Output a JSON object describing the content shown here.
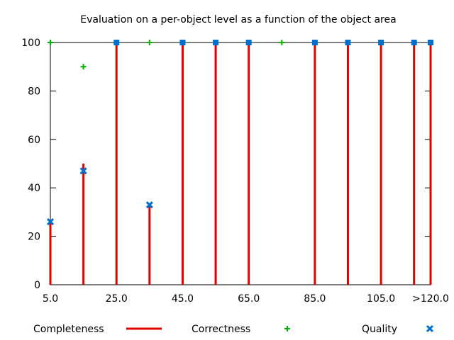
{
  "chart_data": {
    "type": "bar",
    "title": "Evaluation on a per-object level as a function of the object area",
    "xlabel": "",
    "ylabel": "",
    "ylim": [
      0,
      100
    ],
    "y_ticks": [
      0,
      20,
      40,
      60,
      80,
      100
    ],
    "x": [
      5,
      15,
      25,
      35,
      45,
      55,
      65,
      75,
      85,
      95,
      105,
      115,
      120
    ],
    "x_tick_values": [
      5,
      25,
      45,
      65,
      85,
      105,
      120
    ],
    "x_tick_labels": [
      "5.0",
      "25.0",
      "45.0",
      "65.0",
      "85.0",
      "105.0",
      ">120.0"
    ],
    "legend_position": "bottom",
    "series": [
      {
        "name": "Completeness",
        "style": "impulse",
        "color": "#e00000",
        "values": [
          26,
          50,
          100,
          33,
          100,
          100,
          100,
          0,
          100,
          100,
          100,
          100,
          100
        ]
      },
      {
        "name": "Correctness",
        "style": "plus",
        "color": "#00b000",
        "values": [
          100,
          90,
          100,
          100,
          100,
          100,
          100,
          100,
          100,
          100,
          100,
          100,
          100
        ]
      },
      {
        "name": "Quality",
        "style": "cross",
        "color": "#0070d0",
        "values": [
          26,
          47,
          100,
          33,
          100,
          100,
          100,
          null,
          100,
          100,
          100,
          100,
          100
        ]
      }
    ]
  }
}
